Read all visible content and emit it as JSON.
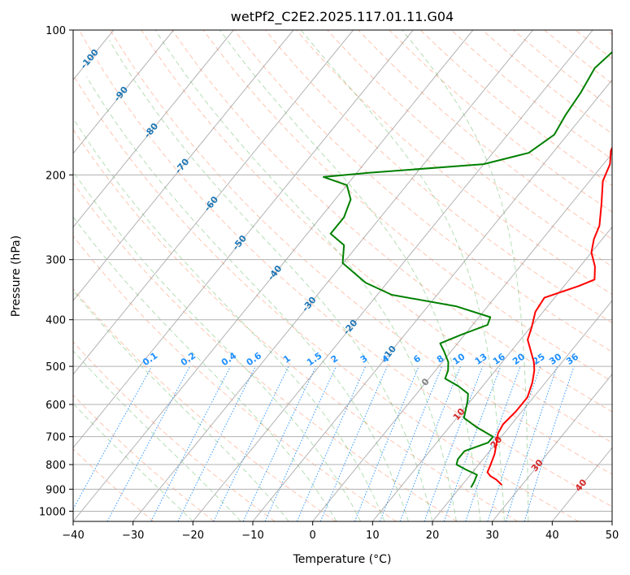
{
  "chart_data": {
    "type": "line",
    "title": "wetPf2_C2E2.2025.117.01.11.G04",
    "xlabel": "Temperature (°C)",
    "ylabel": "Pressure (hPa)",
    "xlim": [
      -40,
      50
    ],
    "ylim": [
      1050,
      100
    ],
    "y_scale": "log",
    "x_ticks": [
      "−40",
      "−30",
      "−20",
      "−10",
      "0",
      "10",
      "20",
      "30",
      "40",
      "50"
    ],
    "x_tick_values": [
      -40,
      -30,
      -20,
      -10,
      0,
      10,
      20,
      30,
      40,
      50
    ],
    "y_ticks": [
      "100",
      "200",
      "300",
      "400",
      "500",
      "600",
      "700",
      "800",
      "900",
      "1000"
    ],
    "y_tick_values": [
      100,
      200,
      300,
      400,
      500,
      600,
      700,
      800,
      900,
      1000
    ],
    "grid": true,
    "colors": {
      "temperature": "#ff0000",
      "dewpoint": "#008000",
      "isotherm": "#808080",
      "dry_adiabat": "#ff7f50",
      "moist_adiabat": "#2ca02c",
      "mixing_ratio": "#1e90ff",
      "isotherm_label_neg": "#1f77b4",
      "isotherm_label_pos": "#d62728",
      "isotherm_label_zero": "#808080",
      "pressure_grid": "#b0b0b0"
    },
    "series": [
      {
        "name": "Temperature",
        "points": [
          [
            26.5,
            880
          ],
          [
            25.0,
            860
          ],
          [
            23.5,
            845
          ],
          [
            22.5,
            830
          ],
          [
            22.0,
            800
          ],
          [
            21.2,
            760
          ],
          [
            20.0,
            720
          ],
          [
            19.0,
            690
          ],
          [
            18.6,
            660
          ],
          [
            19.0,
            620
          ],
          [
            19.0,
            580
          ],
          [
            17.8,
            540
          ],
          [
            16.5,
            510
          ],
          [
            15.3,
            490
          ],
          [
            13.3,
            465
          ],
          [
            11.2,
            440
          ],
          [
            10.2,
            415
          ],
          [
            8.7,
            385
          ],
          [
            8.3,
            360
          ],
          [
            12.5,
            340
          ],
          [
            14.2,
            330
          ],
          [
            12.5,
            310
          ],
          [
            10.0,
            290
          ],
          [
            8.6,
            272
          ],
          [
            7.7,
            255
          ],
          [
            5.1,
            230
          ],
          [
            2.2,
            206
          ],
          [
            1.1,
            190
          ],
          [
            -0.6,
            178
          ],
          [
            -1.5,
            165
          ],
          [
            -2.0,
            153
          ],
          [
            -2.3,
            140
          ],
          [
            -2.5,
            131
          ],
          [
            -2.5,
            120
          ],
          [
            -2.6,
            112
          ]
        ]
      },
      {
        "name": "Dewpoint",
        "points": [
          [
            21.8,
            890
          ],
          [
            21.6,
            870
          ],
          [
            21.1,
            840
          ],
          [
            18.6,
            820
          ],
          [
            16.3,
            800
          ],
          [
            15.8,
            780
          ],
          [
            15.8,
            750
          ],
          [
            18.6,
            720
          ],
          [
            18.6,
            700
          ],
          [
            14.7,
            670
          ],
          [
            11.2,
            640
          ],
          [
            10.2,
            610
          ],
          [
            9.5,
            590
          ],
          [
            8.6,
            570
          ],
          [
            6.0,
            550
          ],
          [
            2.7,
            530
          ],
          [
            2.1,
            510
          ],
          [
            1.0,
            490
          ],
          [
            -1.2,
            465
          ],
          [
            -2.9,
            448
          ],
          [
            -0.6,
            430
          ],
          [
            2.5,
            410
          ],
          [
            1.9,
            395
          ],
          [
            -5.3,
            375
          ],
          [
            -17.6,
            355
          ],
          [
            -23.6,
            335
          ],
          [
            -30.1,
            305
          ],
          [
            -32.3,
            280
          ],
          [
            -36.1,
            265
          ],
          [
            -36.1,
            245
          ],
          [
            -37.4,
            225
          ],
          [
            -40.0,
            210
          ],
          [
            -45.0,
            202
          ],
          [
            -38.0,
            198
          ],
          [
            -20.0,
            190
          ],
          [
            -14.0,
            180
          ],
          [
            -12.2,
            165
          ],
          [
            -13.0,
            150
          ],
          [
            -13.5,
            135
          ],
          [
            -14.5,
            120
          ],
          [
            -13.5,
            108
          ],
          [
            -10.9,
            100
          ]
        ]
      }
    ],
    "isotherm_labels": [
      "-100",
      "-90",
      "-80",
      "-70",
      "-60",
      "-50",
      "-40",
      "-30",
      "-20",
      "-10",
      "0",
      "10",
      "20",
      "30",
      "40"
    ],
    "isotherm_label_values": [
      -100,
      -90,
      -80,
      -70,
      -60,
      -50,
      -40,
      -30,
      -20,
      -10,
      0,
      10,
      20,
      30,
      40
    ],
    "mixing_ratio_labels": [
      "0.1",
      "0.2",
      "0.4",
      "0.6",
      "1",
      "1.5",
      "2",
      "3",
      "4",
      "6",
      "8",
      "10",
      "13",
      "16",
      "20",
      "25",
      "30",
      "36"
    ],
    "mixing_ratio_values": [
      0.1,
      0.2,
      0.4,
      0.6,
      1,
      1.5,
      2,
      3,
      4,
      6,
      8,
      10,
      13,
      16,
      20,
      25,
      30,
      36
    ]
  }
}
